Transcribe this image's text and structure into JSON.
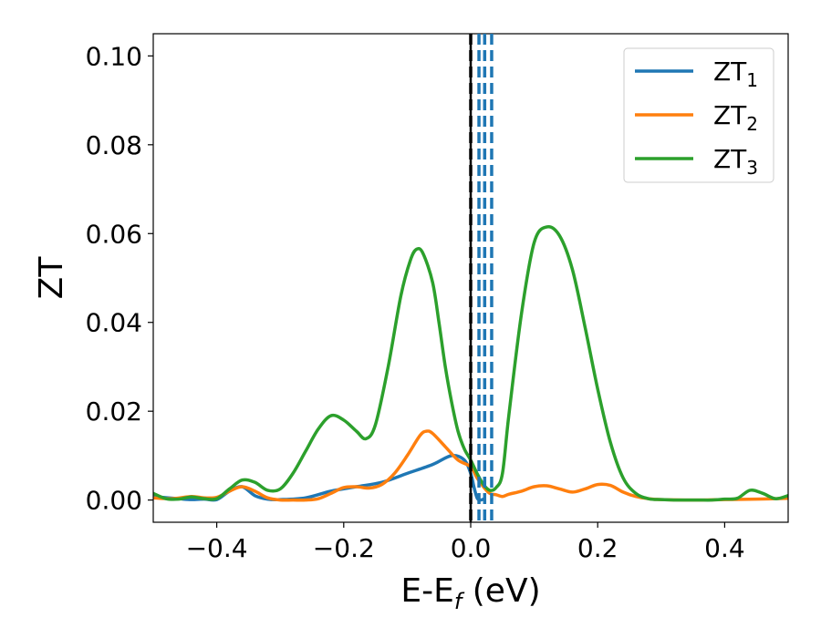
{
  "chart_data": {
    "type": "line",
    "xlabel": "E-E",
    "xlabel_sub": "f",
    "xlabel_suffix": " (eV)",
    "ylabel": "ZT",
    "xlim": [
      -0.5,
      0.5
    ],
    "ylim": [
      -0.005,
      0.105
    ],
    "xticks": [
      -0.4,
      -0.2,
      0.0,
      0.2,
      0.4
    ],
    "xtick_labels": [
      "−0.4",
      "−0.2",
      "0.0",
      "0.2",
      "0.4"
    ],
    "yticks": [
      0.0,
      0.02,
      0.04,
      0.06,
      0.08,
      0.1
    ],
    "ytick_labels": [
      "0.00",
      "0.02",
      "0.04",
      "0.06",
      "0.08",
      "0.10"
    ],
    "legend_position": "top-right",
    "grid": false,
    "vlines": [
      {
        "x": 0.0,
        "color": "#000000",
        "style": "solid"
      },
      {
        "x": 0.0,
        "color": "#000000",
        "style": "dashed"
      },
      {
        "x": 0.013,
        "color": "#1f77b4",
        "style": "dashed"
      },
      {
        "x": 0.022,
        "color": "#1f77b4",
        "style": "dashed"
      },
      {
        "x": 0.033,
        "color": "#1f77b4",
        "style": "dashed"
      }
    ],
    "series": [
      {
        "name": "ZT",
        "sub": "1",
        "color": "#1f77b4",
        "x": [
          -0.5,
          -0.46,
          -0.44,
          -0.42,
          -0.4,
          -0.38,
          -0.36,
          -0.34,
          -0.32,
          -0.3,
          -0.26,
          -0.22,
          -0.18,
          -0.14,
          -0.1,
          -0.06,
          -0.03,
          -0.01,
          0.0,
          0.005,
          0.01,
          0.015,
          0.02
        ],
        "y": [
          0.0008,
          0.0003,
          0.0001,
          0.0002,
          0.0001,
          0.002,
          0.003,
          0.001,
          0.0002,
          0.0001,
          0.0005,
          0.002,
          0.003,
          0.004,
          0.006,
          0.008,
          0.01,
          0.009,
          0.006,
          0.003,
          0.0005,
          0.0,
          0.0002
        ]
      },
      {
        "name": "ZT",
        "sub": "2",
        "color": "#ff7f0e",
        "x": [
          -0.5,
          -0.47,
          -0.44,
          -0.42,
          -0.4,
          -0.38,
          -0.36,
          -0.34,
          -0.32,
          -0.3,
          -0.28,
          -0.26,
          -0.24,
          -0.22,
          -0.2,
          -0.18,
          -0.16,
          -0.14,
          -0.12,
          -0.1,
          -0.08,
          -0.07,
          -0.06,
          -0.04,
          -0.02,
          0.0,
          0.01,
          0.02,
          0.03,
          0.04,
          0.05,
          0.06,
          0.08,
          0.1,
          0.12,
          0.14,
          0.16,
          0.18,
          0.2,
          0.22,
          0.24,
          0.26,
          0.28,
          0.3,
          0.35,
          0.4,
          0.45,
          0.5
        ],
        "y": [
          0.0005,
          0.0003,
          0.0008,
          0.0005,
          0.0006,
          0.002,
          0.003,
          0.002,
          0.0005,
          0.0,
          0.0,
          0.0,
          0.0003,
          0.0015,
          0.0028,
          0.003,
          0.0027,
          0.0035,
          0.006,
          0.01,
          0.0145,
          0.0155,
          0.015,
          0.012,
          0.009,
          0.0075,
          0.005,
          0.003,
          0.0015,
          0.0012,
          0.0008,
          0.0013,
          0.002,
          0.003,
          0.0032,
          0.0025,
          0.0018,
          0.0025,
          0.0035,
          0.0033,
          0.0018,
          0.0008,
          0.0003,
          0.0001,
          0.0,
          0.0001,
          0.0002,
          0.0004
        ]
      },
      {
        "name": "ZT",
        "sub": "3",
        "color": "#2ca02c",
        "x": [
          -0.5,
          -0.48,
          -0.46,
          -0.44,
          -0.42,
          -0.4,
          -0.38,
          -0.36,
          -0.34,
          -0.32,
          -0.3,
          -0.28,
          -0.26,
          -0.24,
          -0.22,
          -0.2,
          -0.18,
          -0.165,
          -0.15,
          -0.13,
          -0.11,
          -0.095,
          -0.085,
          -0.075,
          -0.06,
          -0.05,
          -0.04,
          -0.03,
          -0.02,
          -0.01,
          0.0,
          0.01,
          0.02,
          0.03,
          0.04,
          0.05,
          0.06,
          0.08,
          0.1,
          0.12,
          0.14,
          0.16,
          0.18,
          0.2,
          0.22,
          0.24,
          0.26,
          0.28,
          0.3,
          0.32,
          0.34,
          0.36,
          0.38,
          0.4,
          0.42,
          0.44,
          0.46,
          0.48,
          0.5
        ],
        "y": [
          0.0015,
          0.0003,
          0.0002,
          0.0007,
          0.0003,
          0.0003,
          0.0025,
          0.0045,
          0.004,
          0.0022,
          0.0025,
          0.006,
          0.011,
          0.016,
          0.019,
          0.018,
          0.0155,
          0.0138,
          0.017,
          0.03,
          0.046,
          0.054,
          0.0565,
          0.0555,
          0.049,
          0.04,
          0.03,
          0.022,
          0.0155,
          0.0115,
          0.009,
          0.006,
          0.0035,
          0.0022,
          0.0028,
          0.006,
          0.019,
          0.042,
          0.058,
          0.0615,
          0.0595,
          0.052,
          0.039,
          0.025,
          0.013,
          0.005,
          0.0015,
          0.0003,
          0.0001,
          0.0,
          0.0,
          0.0,
          0.0,
          0.0002,
          0.0004,
          0.0022,
          0.0015,
          0.0003,
          0.001
        ]
      }
    ]
  }
}
